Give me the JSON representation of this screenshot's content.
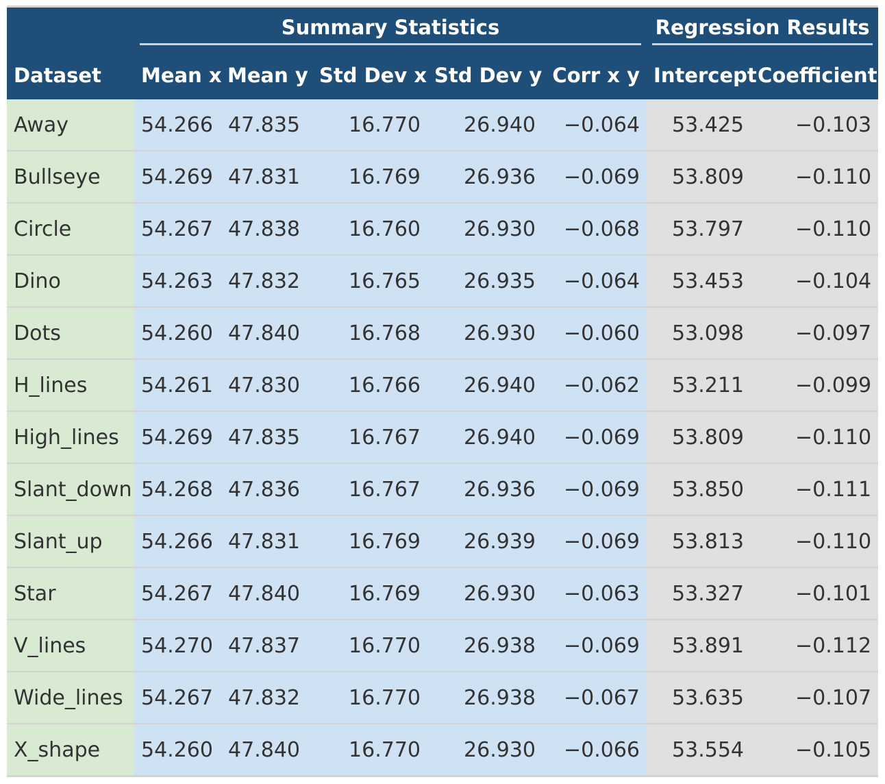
{
  "spanners": {
    "summary": "Summary Statistics",
    "regression": "Regression Results"
  },
  "columns": [
    "Dataset",
    "Mean x",
    "Mean y",
    "Std Dev x",
    "Std Dev y",
    "Corr x y",
    "Intercept",
    "Coefficient"
  ],
  "colors": {
    "header_bg": "#1f4e79",
    "dataset_bg": "#d9ead3",
    "summary_bg": "#cfe2f3",
    "regression_bg": "#e0e0e0"
  },
  "rows": [
    [
      "Away",
      "54.266",
      "47.835",
      "16.770",
      "26.940",
      "−0.064",
      "53.425",
      "−0.103"
    ],
    [
      "Bullseye",
      "54.269",
      "47.831",
      "16.769",
      "26.936",
      "−0.069",
      "53.809",
      "−0.110"
    ],
    [
      "Circle",
      "54.267",
      "47.838",
      "16.760",
      "26.930",
      "−0.068",
      "53.797",
      "−0.110"
    ],
    [
      "Dino",
      "54.263",
      "47.832",
      "16.765",
      "26.935",
      "−0.064",
      "53.453",
      "−0.104"
    ],
    [
      "Dots",
      "54.260",
      "47.840",
      "16.768",
      "26.930",
      "−0.060",
      "53.098",
      "−0.097"
    ],
    [
      "H_lines",
      "54.261",
      "47.830",
      "16.766",
      "26.940",
      "−0.062",
      "53.211",
      "−0.099"
    ],
    [
      "High_lines",
      "54.269",
      "47.835",
      "16.767",
      "26.940",
      "−0.069",
      "53.809",
      "−0.110"
    ],
    [
      "Slant_down",
      "54.268",
      "47.836",
      "16.767",
      "26.936",
      "−0.069",
      "53.850",
      "−0.111"
    ],
    [
      "Slant_up",
      "54.266",
      "47.831",
      "16.769",
      "26.939",
      "−0.069",
      "53.813",
      "−0.110"
    ],
    [
      "Star",
      "54.267",
      "47.840",
      "16.769",
      "26.930",
      "−0.063",
      "53.327",
      "−0.101"
    ],
    [
      "V_lines",
      "54.270",
      "47.837",
      "16.770",
      "26.938",
      "−0.069",
      "53.891",
      "−0.112"
    ],
    [
      "Wide_lines",
      "54.267",
      "47.832",
      "16.770",
      "26.938",
      "−0.067",
      "53.635",
      "−0.107"
    ],
    [
      "X_shape",
      "54.260",
      "47.840",
      "16.770",
      "26.930",
      "−0.066",
      "53.554",
      "−0.105"
    ]
  ]
}
